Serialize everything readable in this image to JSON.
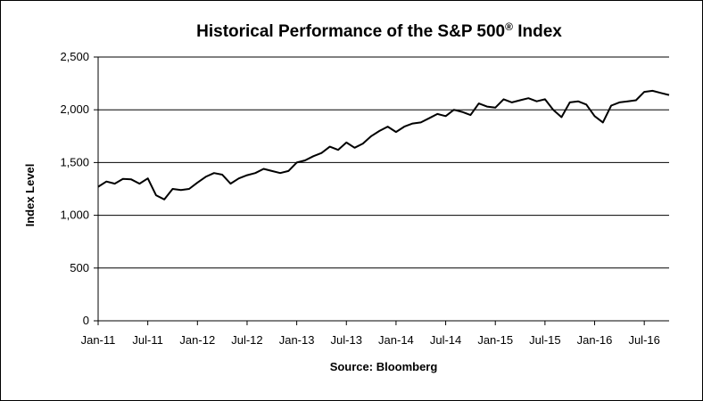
{
  "chart_data": {
    "type": "line",
    "title": "Historical Performance of the S&P 500",
    "title_superscript": "®",
    "title_suffix": " Index",
    "ylabel": "Index Level",
    "xlabel": "",
    "source": "Source:  Bloomberg",
    "ylim": [
      0,
      2500
    ],
    "yticks": [
      "0",
      "500",
      "1,000",
      "1,500",
      "2,000",
      "2,500"
    ],
    "ytick_values": [
      0,
      500,
      1000,
      1500,
      2000,
      2500
    ],
    "xlim": [
      "2011-01",
      "2016-10"
    ],
    "xticks": [
      "Jan-11",
      "Jul-11",
      "Jan-12",
      "Jul-12",
      "Jan-13",
      "Jul-13",
      "Jan-14",
      "Jul-14",
      "Jan-15",
      "Jul-15",
      "Jan-16",
      "Jul-16"
    ],
    "grid": true,
    "line_color": "#000000",
    "series": [
      {
        "x": [
          "2011-01",
          "2011-02",
          "2011-03",
          "2011-04",
          "2011-05",
          "2011-06",
          "2011-07",
          "2011-08",
          "2011-09",
          "2011-10",
          "2011-11",
          "2011-12",
          "2012-01",
          "2012-02",
          "2012-03",
          "2012-04",
          "2012-05",
          "2012-06",
          "2012-07",
          "2012-08",
          "2012-09",
          "2012-10",
          "2012-11",
          "2012-12",
          "2013-01",
          "2013-02",
          "2013-03",
          "2013-04",
          "2013-05",
          "2013-06",
          "2013-07",
          "2013-08",
          "2013-09",
          "2013-10",
          "2013-11",
          "2013-12",
          "2014-01",
          "2014-02",
          "2014-03",
          "2014-04",
          "2014-05",
          "2014-06",
          "2014-07",
          "2014-08",
          "2014-09",
          "2014-10",
          "2014-11",
          "2014-12",
          "2015-01",
          "2015-02",
          "2015-03",
          "2015-04",
          "2015-05",
          "2015-06",
          "2015-07",
          "2015-08",
          "2015-09",
          "2015-10",
          "2015-11",
          "2015-12",
          "2016-01",
          "2016-02",
          "2016-03",
          "2016-04",
          "2016-05",
          "2016-06",
          "2016-07",
          "2016-08",
          "2016-09",
          "2016-10"
        ],
        "values": [
          1270,
          1320,
          1300,
          1345,
          1340,
          1300,
          1350,
          1190,
          1150,
          1250,
          1240,
          1250,
          1310,
          1365,
          1400,
          1385,
          1300,
          1350,
          1380,
          1400,
          1440,
          1420,
          1400,
          1420,
          1500,
          1520,
          1560,
          1590,
          1650,
          1620,
          1690,
          1640,
          1680,
          1750,
          1800,
          1840,
          1790,
          1840,
          1870,
          1880,
          1920,
          1960,
          1940,
          2000,
          1980,
          1950,
          2060,
          2030,
          2020,
          2100,
          2070,
          2090,
          2110,
          2080,
          2100,
          2000,
          1930,
          2070,
          2080,
          2050,
          1940,
          1880,
          2040,
          2070,
          2080,
          2090,
          2170,
          2180,
          2160,
          2140
        ]
      }
    ]
  }
}
